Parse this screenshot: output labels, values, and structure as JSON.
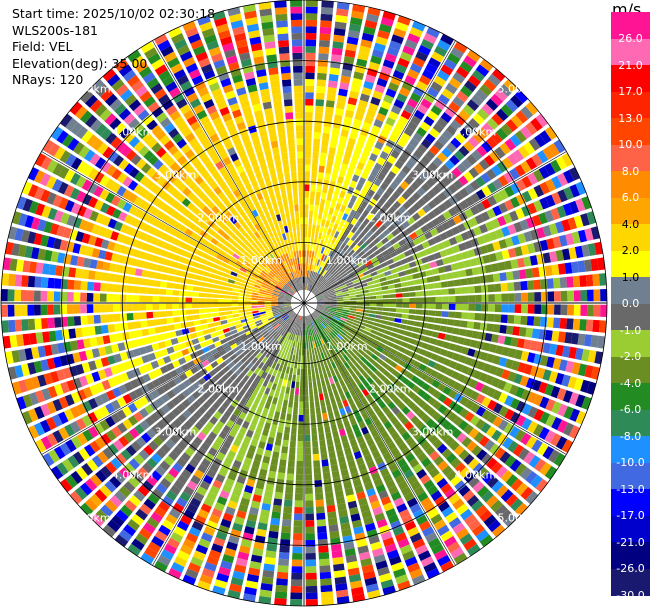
{
  "header": {
    "start_time": "Start time: 2025/10/02 02:30:18",
    "instrument": "WLS200s-181",
    "field": "Field: VEL",
    "elevation": "Elevation(deg): 35.00",
    "nrays": "NRays: 120"
  },
  "colorbar": {
    "unit": "m/s",
    "ticks": [
      "26.0",
      "21.0",
      "17.0",
      "13.0",
      "10.0",
      "8.0",
      "6.0",
      "4.0",
      "2.0",
      "1.0",
      "0.0",
      "-1.0",
      "-2.0",
      "-4.0",
      "-6.0",
      "-8.0",
      "-10.0",
      "-13.0",
      "-17.0",
      "-21.0",
      "-26.0",
      "-30.0"
    ],
    "colors": [
      "#ff1493",
      "#ff69b4",
      "#ff0000",
      "#ff2400",
      "#ff4500",
      "#ff6347",
      "#ff8c00",
      "#ffa500",
      "#ffd700",
      "#ffff00",
      "#708090",
      "#696969",
      "#9acd32",
      "#6b8e23",
      "#228b22",
      "#2e8b57",
      "#1e90ff",
      "#4169e1",
      "#0000ff",
      "#0000cd",
      "#000080",
      "#191970"
    ]
  },
  "chart_data": {
    "type": "heatmap",
    "projection": "polar PPI",
    "field": "VEL",
    "unit": "m/s",
    "elevation_deg": 35.0,
    "nrays": 120,
    "range_ring_labels": [
      "1.00km",
      "2.00km",
      "3.00km",
      "4.00km",
      "5.00km"
    ],
    "range_rings_km": [
      1,
      2,
      3,
      4,
      5
    ],
    "max_range_km": 5.0,
    "color_scale": [
      -30,
      -26,
      -21,
      -17,
      -13,
      -10,
      -8,
      -6,
      -4,
      -2,
      -1,
      0,
      1,
      2,
      4,
      6,
      8,
      10,
      13,
      17,
      21,
      26
    ],
    "pattern": {
      "north_west_quadrant": "positive 2 to 6 m/s (yellow/orange)",
      "south_east_quadrant": "negative -1 to -6 m/s (green)",
      "near_center": "0 to -1 m/s (gray)",
      "outer_ranges_beyond_km": 3.8,
      "outer_note": "noisy multicolor returns"
    }
  }
}
